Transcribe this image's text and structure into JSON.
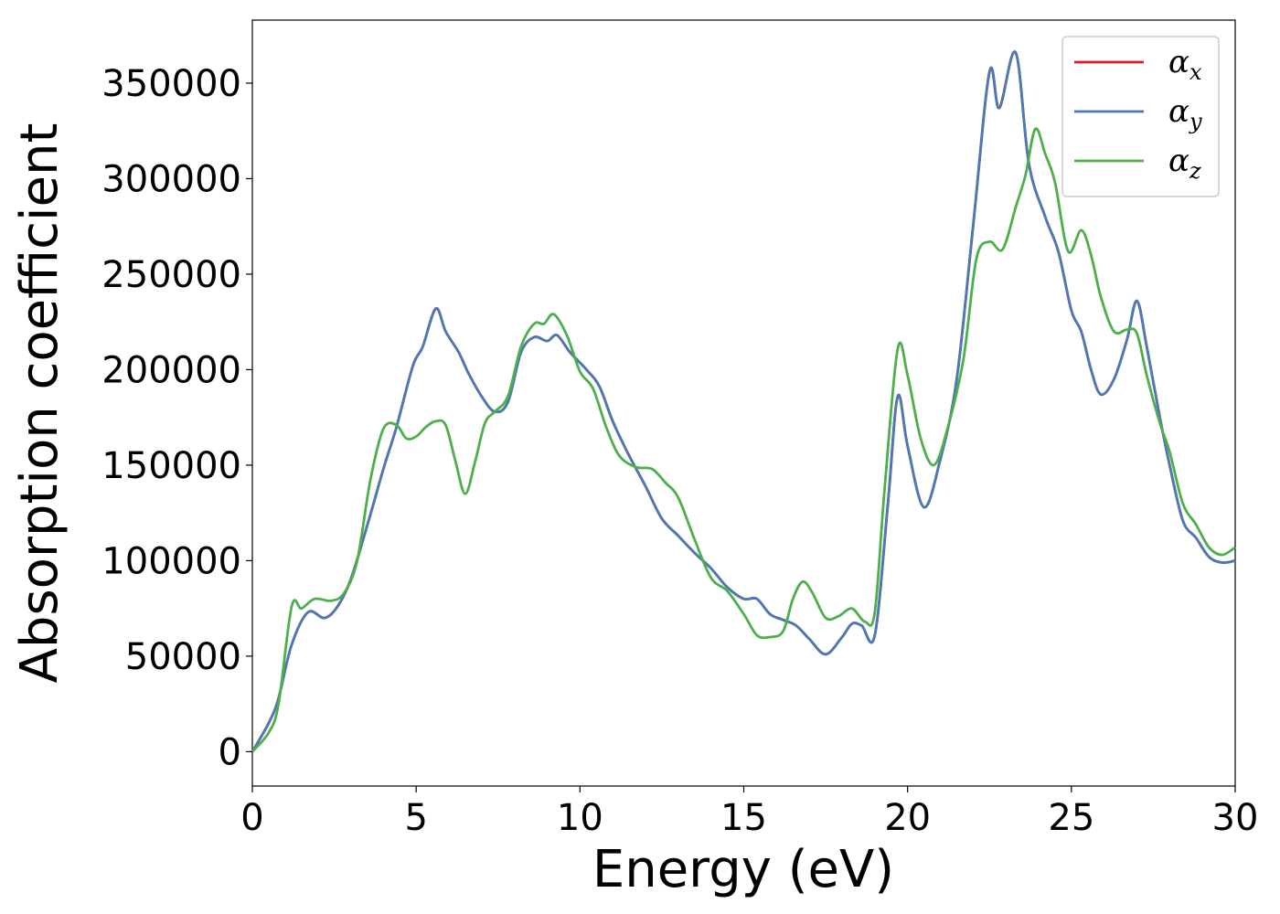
{
  "chart_data": {
    "type": "line",
    "xlabel": "Energy (eV)",
    "ylabel": "Absorption coefficient",
    "xlim": [
      0,
      30
    ],
    "ylim": [
      -18000,
      383000
    ],
    "xticks": [
      0,
      5,
      10,
      15,
      20,
      25,
      30
    ],
    "yticks": [
      0,
      50000,
      100000,
      150000,
      200000,
      250000,
      300000,
      350000
    ],
    "grid": false,
    "legend_position": "top-right",
    "series": [
      {
        "name": "αx",
        "symbol": "α",
        "subscript": "x",
        "color": "#e41a1c",
        "x": [
          0,
          0.5,
          0.8,
          1.2,
          1.7,
          2.2,
          2.6,
          3.0,
          3.5,
          4.0,
          4.4,
          4.9,
          5.2,
          5.6,
          5.9,
          6.3,
          6.6,
          7.0,
          7.4,
          7.8,
          8.2,
          8.6,
          9.0,
          9.3,
          9.7,
          10.2,
          10.6,
          11.0,
          11.5,
          12.0,
          12.5,
          13.0,
          13.5,
          14.0,
          14.5,
          15.0,
          15.4,
          15.8,
          16.2,
          16.6,
          17.0,
          17.5,
          18.0,
          18.3,
          18.6,
          19.0,
          19.4,
          19.7,
          20.0,
          20.5,
          21.0,
          21.5,
          22.0,
          22.5,
          22.8,
          23.3,
          23.7,
          24.2,
          24.6,
          25.0,
          25.3,
          25.6,
          25.9,
          26.3,
          26.7,
          27.0,
          27.3,
          27.7,
          28.0,
          28.4,
          28.8,
          29.2,
          29.6,
          30.0
        ],
        "y": [
          0,
          15000,
          28000,
          56000,
          73000,
          70000,
          76000,
          90000,
          118000,
          148000,
          170000,
          202000,
          212000,
          232000,
          220000,
          209000,
          198000,
          186000,
          178000,
          183000,
          209000,
          217000,
          215000,
          218000,
          209000,
          200000,
          191000,
          173000,
          155000,
          139000,
          122000,
          113000,
          104000,
          96000,
          86000,
          80000,
          80000,
          72000,
          69000,
          66000,
          59000,
          51000,
          60000,
          67000,
          66000,
          61000,
          130000,
          186000,
          160000,
          128000,
          153000,
          195000,
          275000,
          356000,
          337000,
          366000,
          308000,
          280000,
          262000,
          231000,
          220000,
          200000,
          187000,
          195000,
          216000,
          236000,
          212000,
          175000,
          150000,
          121000,
          112000,
          102000,
          99000,
          100000
        ]
      },
      {
        "name": "αy",
        "symbol": "α",
        "subscript": "y",
        "color": "#4a7ab5",
        "x": [
          0,
          0.5,
          0.8,
          1.2,
          1.7,
          2.2,
          2.6,
          3.0,
          3.5,
          4.0,
          4.4,
          4.9,
          5.2,
          5.6,
          5.9,
          6.3,
          6.6,
          7.0,
          7.4,
          7.8,
          8.2,
          8.6,
          9.0,
          9.3,
          9.7,
          10.2,
          10.6,
          11.0,
          11.5,
          12.0,
          12.5,
          13.0,
          13.5,
          14.0,
          14.5,
          15.0,
          15.4,
          15.8,
          16.2,
          16.6,
          17.0,
          17.5,
          18.0,
          18.3,
          18.6,
          19.0,
          19.4,
          19.7,
          20.0,
          20.5,
          21.0,
          21.5,
          22.0,
          22.5,
          22.8,
          23.3,
          23.7,
          24.2,
          24.6,
          25.0,
          25.3,
          25.6,
          25.9,
          26.3,
          26.7,
          27.0,
          27.3,
          27.7,
          28.0,
          28.4,
          28.8,
          29.2,
          29.6,
          30.0
        ],
        "y": [
          0,
          15000,
          28000,
          56000,
          73000,
          70000,
          76000,
          90000,
          118000,
          148000,
          170000,
          202000,
          212000,
          232000,
          220000,
          209000,
          198000,
          186000,
          178000,
          183000,
          209000,
          217000,
          215000,
          218000,
          209000,
          200000,
          191000,
          173000,
          155000,
          139000,
          122000,
          113000,
          104000,
          96000,
          86000,
          80000,
          80000,
          72000,
          69000,
          66000,
          59000,
          51000,
          60000,
          67000,
          66000,
          61000,
          130000,
          186000,
          160000,
          128000,
          153000,
          195000,
          275000,
          356000,
          337000,
          366000,
          308000,
          280000,
          262000,
          231000,
          220000,
          200000,
          187000,
          195000,
          216000,
          236000,
          212000,
          175000,
          150000,
          121000,
          112000,
          102000,
          99000,
          100000
        ]
      },
      {
        "name": "αz",
        "symbol": "α",
        "subscript": "z",
        "color": "#4daf4a",
        "x": [
          0,
          0.5,
          0.8,
          1.2,
          1.5,
          1.9,
          2.4,
          2.8,
          3.2,
          3.6,
          4.0,
          4.4,
          4.7,
          5.0,
          5.3,
          5.6,
          5.9,
          6.2,
          6.5,
          6.8,
          7.1,
          7.4,
          7.8,
          8.2,
          8.6,
          8.9,
          9.2,
          9.6,
          10.0,
          10.4,
          10.8,
          11.2,
          11.7,
          12.2,
          12.6,
          13.0,
          13.5,
          14.0,
          14.5,
          15.0,
          15.4,
          15.8,
          16.2,
          16.5,
          16.8,
          17.1,
          17.5,
          17.9,
          18.3,
          18.7,
          19.0,
          19.3,
          19.7,
          20.0,
          20.4,
          20.8,
          21.2,
          21.7,
          22.1,
          22.5,
          22.9,
          23.3,
          23.6,
          23.9,
          24.2,
          24.5,
          24.9,
          25.3,
          25.6,
          25.9,
          26.3,
          26.7,
          27.0,
          27.3,
          27.7,
          28.0,
          28.4,
          28.8,
          29.2,
          29.6,
          30.0
        ],
        "y": [
          0,
          10000,
          25000,
          76000,
          75000,
          80000,
          79000,
          83000,
          100000,
          142000,
          169000,
          171000,
          164000,
          165000,
          170000,
          173000,
          171000,
          152000,
          135000,
          152000,
          172000,
          178000,
          186000,
          212000,
          224000,
          224000,
          229000,
          218000,
          199000,
          190000,
          170000,
          155000,
          149000,
          148000,
          141000,
          133000,
          111000,
          91000,
          84000,
          72000,
          61000,
          60000,
          63000,
          80000,
          89000,
          83000,
          70000,
          71000,
          75000,
          68000,
          73000,
          138000,
          211000,
          197000,
          164000,
          150000,
          168000,
          205000,
          258000,
          267000,
          263000,
          285000,
          302000,
          326000,
          313000,
          298000,
          262000,
          273000,
          260000,
          238000,
          220000,
          221000,
          219000,
          197000,
          172000,
          157000,
          130000,
          119000,
          107000,
          103000,
          107000
        ]
      }
    ]
  }
}
